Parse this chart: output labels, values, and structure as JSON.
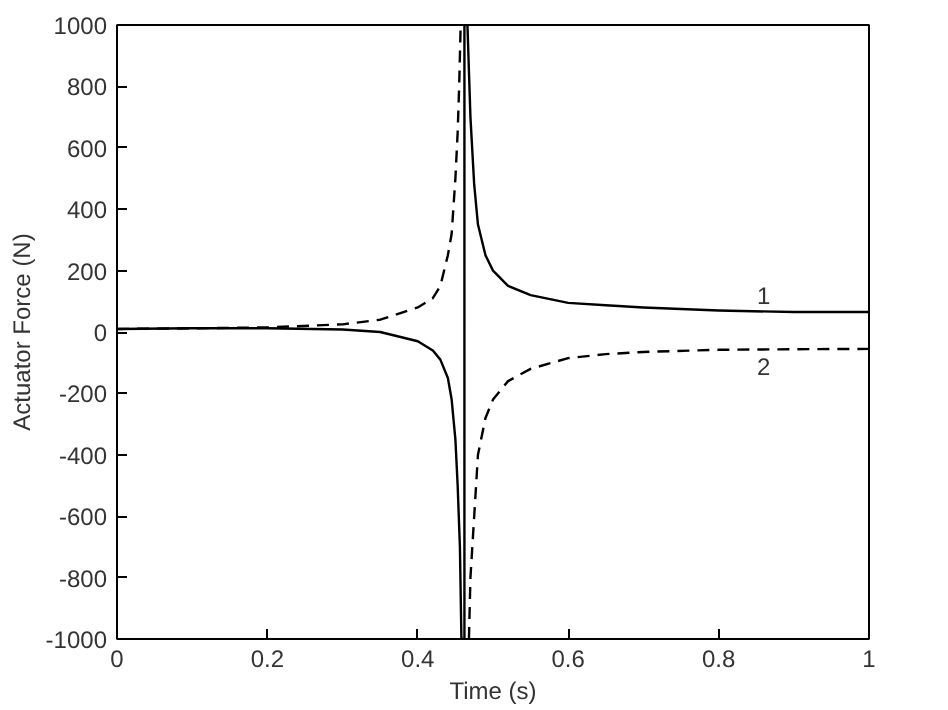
{
  "chart_data": {
    "type": "line",
    "xlabel": "Time (s)",
    "ylabel": "Actuator Force (N)",
    "xlim": [
      0,
      1
    ],
    "ylim": [
      -1000,
      1000
    ],
    "xticks": [
      0,
      0.2,
      0.4,
      0.6,
      0.8,
      1
    ],
    "yticks": [
      -1000,
      -800,
      -600,
      -400,
      -200,
      0,
      200,
      400,
      600,
      800,
      1000
    ],
    "grid": false,
    "series": [
      {
        "name": "1",
        "color": "#000000",
        "line_style": "solid",
        "x": [
          0,
          0.1,
          0.2,
          0.3,
          0.35,
          0.4,
          0.42,
          0.43,
          0.44,
          0.445,
          0.45,
          0.453,
          0.456,
          0.458,
          0.462,
          0.462,
          0.466,
          0.468,
          0.47,
          0.475,
          0.48,
          0.49,
          0.5,
          0.52,
          0.55,
          0.6,
          0.65,
          0.7,
          0.8,
          0.9,
          1
        ],
        "values": [
          10,
          12,
          12,
          8,
          0,
          -30,
          -60,
          -90,
          -150,
          -220,
          -350,
          -500,
          -700,
          -1000,
          -1000,
          1000,
          1000,
          850,
          700,
          480,
          350,
          250,
          200,
          150,
          120,
          95,
          87,
          80,
          70,
          65,
          65
        ]
      },
      {
        "name": "2",
        "color": "#000000",
        "line_style": "dashed",
        "x": [
          0,
          0.1,
          0.2,
          0.3,
          0.35,
          0.4,
          0.42,
          0.43,
          0.44,
          0.445,
          0.45,
          0.453,
          0.455,
          0.457,
          0.462,
          0.468,
          0.47,
          0.475,
          0.48,
          0.49,
          0.5,
          0.52,
          0.55,
          0.6,
          0.65,
          0.7,
          0.8,
          0.9,
          1
        ],
        "values": [
          10,
          12,
          15,
          25,
          40,
          80,
          110,
          150,
          250,
          320,
          500,
          650,
          800,
          1000,
          null,
          -1000,
          -800,
          -600,
          -400,
          -280,
          -220,
          -160,
          -120,
          -85,
          -72,
          -65,
          -58,
          -56,
          -55
        ]
      }
    ]
  }
}
